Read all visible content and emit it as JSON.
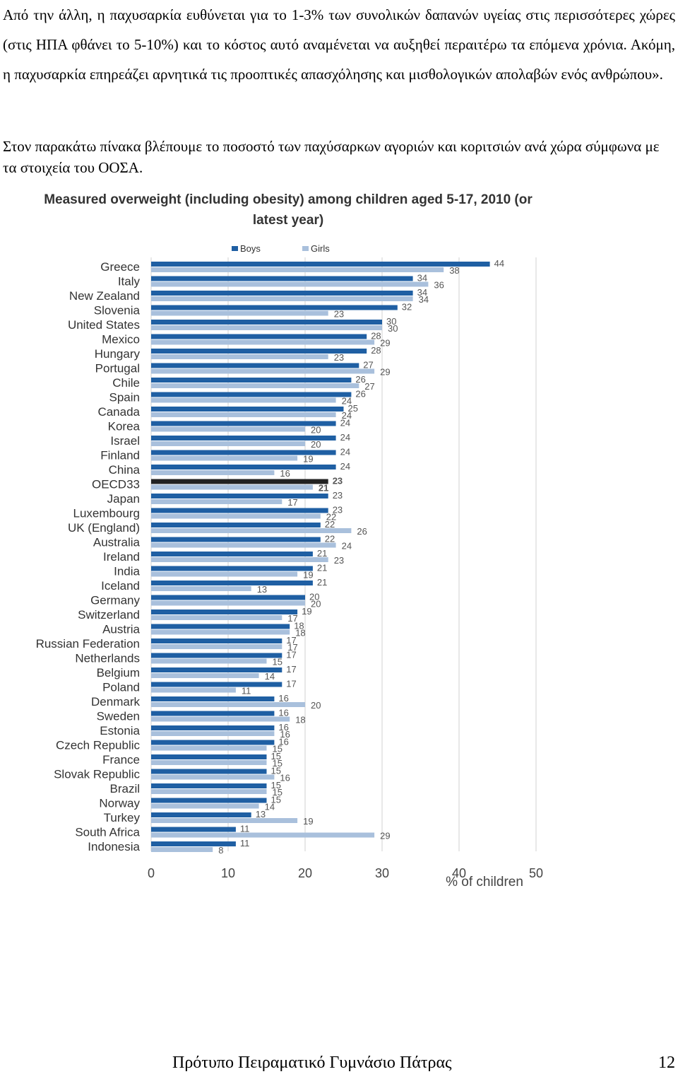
{
  "text": {
    "paragraph1": "Από την άλλη, η παχυσαρκία ευθύνεται για το 1-3% των συνολικών δαπανών υγείας στις περισσότερες χώρες (στις ΗΠΑ φθάνει το 5-10%) και το κόστος αυτό αναμένεται να αυξηθεί περαιτέρω τα επόμενα χρόνια. Ακόμη, η παχυσαρκία επηρεάζει αρνητικά τις προοπτικές απασχόλησης και μισθολογικών απολαβών ενός ανθρώπου».",
    "paragraph2": "Στον παρακάτω πίνακα βλέπουμε το ποσοστό των παχύσαρκων αγοριών και κοριτσιών ανά χώρα σύμφωνα με τα στοιχεία του ΟΟΣΑ."
  },
  "chart_data": {
    "type": "bar",
    "orientation": "horizontal",
    "title_line1": "Measured overweight (including obesity) among children aged 5-17, 2010 (or",
    "title_line2": "latest year)",
    "xlabel": "% of children",
    "ylabel": "",
    "xlim": [
      0,
      50
    ],
    "xticks": [
      0,
      10,
      20,
      30,
      40,
      50
    ],
    "legend_position": "top",
    "categories": [
      "Greece",
      "Italy",
      "New Zealand",
      "Slovenia",
      "United States",
      "Mexico",
      "Hungary",
      "Portugal",
      "Chile",
      "Spain",
      "Canada",
      "Korea",
      "Israel",
      "Finland",
      "China",
      "OECD33",
      "Japan",
      "Luxembourg",
      "UK (England)",
      "Australia",
      "Ireland",
      "India",
      "Iceland",
      "Germany",
      "Switzerland",
      "Austria",
      "Russian Federation",
      "Netherlands",
      "Belgium",
      "Poland",
      "Denmark",
      "Sweden",
      "Estonia",
      "Czech Republic",
      "France",
      "Slovak Republic",
      "Brazil",
      "Norway",
      "Turkey",
      "South Africa",
      "Indonesia"
    ],
    "series": [
      {
        "name": "Boys",
        "color": "#1f5fa3",
        "values": [
          44,
          34,
          34,
          32,
          30,
          28,
          28,
          27,
          26,
          26,
          25,
          24,
          24,
          24,
          24,
          23,
          23,
          23,
          22,
          22,
          21,
          21,
          21,
          20,
          19,
          18,
          17,
          17,
          17,
          17,
          16,
          16,
          16,
          16,
          15,
          15,
          15,
          15,
          13,
          11,
          11
        ]
      },
      {
        "name": "Girls",
        "color": "#a9c0dc",
        "values": [
          38,
          36,
          34,
          23,
          30,
          29,
          23,
          29,
          27,
          24,
          24,
          20,
          20,
          19,
          16,
          21,
          17,
          22,
          26,
          24,
          23,
          19,
          13,
          20,
          17,
          18,
          17,
          15,
          14,
          11,
          20,
          18,
          16,
          15,
          15,
          16,
          15,
          14,
          19,
          29,
          8
        ]
      }
    ],
    "highlight_category": "OECD33",
    "highlight_color": "#222222"
  },
  "footer": {
    "school": "Πρότυπο Πειραματικό Γυμνάσιο  Πάτρας",
    "page_number": "12"
  }
}
